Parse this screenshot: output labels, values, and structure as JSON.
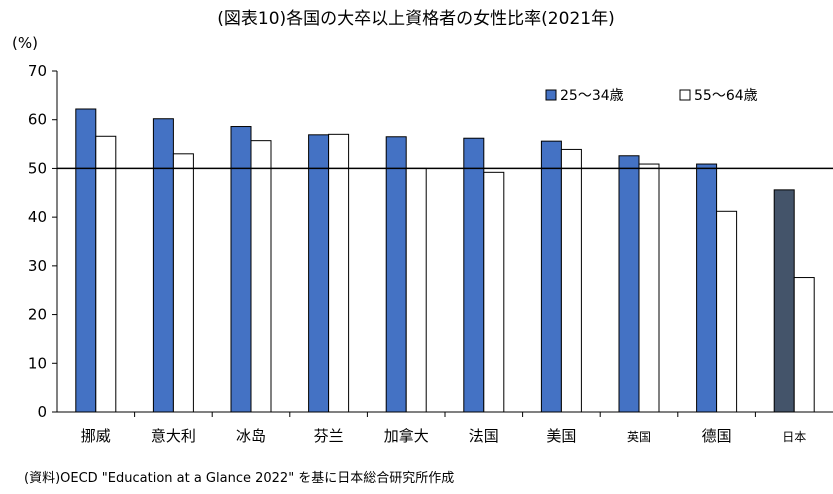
{
  "chart_data": {
    "type": "bar",
    "title": "(図表10)各国の大卒以上資格者の女性比率(2021年)",
    "ylabel": "(%)",
    "ylim": [
      0,
      70
    ],
    "yticks": [
      0,
      10,
      20,
      30,
      40,
      50,
      60,
      70
    ],
    "reference_line": 50,
    "categories": [
      "挪威",
      "意大利",
      "冰岛",
      "芬兰",
      "加拿大",
      "法国",
      "美国",
      "英国",
      "德国",
      "日本"
    ],
    "series": [
      {
        "name": "25～34歳",
        "values": [
          62.2,
          60.2,
          58.6,
          56.9,
          56.5,
          56.2,
          55.6,
          52.6,
          50.9,
          45.6
        ]
      },
      {
        "name": "55～64歳",
        "values": [
          56.6,
          53.0,
          55.7,
          57.0,
          50.0,
          49.2,
          53.9,
          50.9,
          41.2,
          27.6
        ]
      }
    ],
    "legend_position": "top-right",
    "grid": false,
    "source": "(資料)OECD \"Education at a Glance 2022\" を基に日本総合研究所作成"
  },
  "colors": {
    "series_young": "#4472C4",
    "series_old": "#FFFFFF",
    "japan_young": "#44546A",
    "axis": "#000000"
  }
}
